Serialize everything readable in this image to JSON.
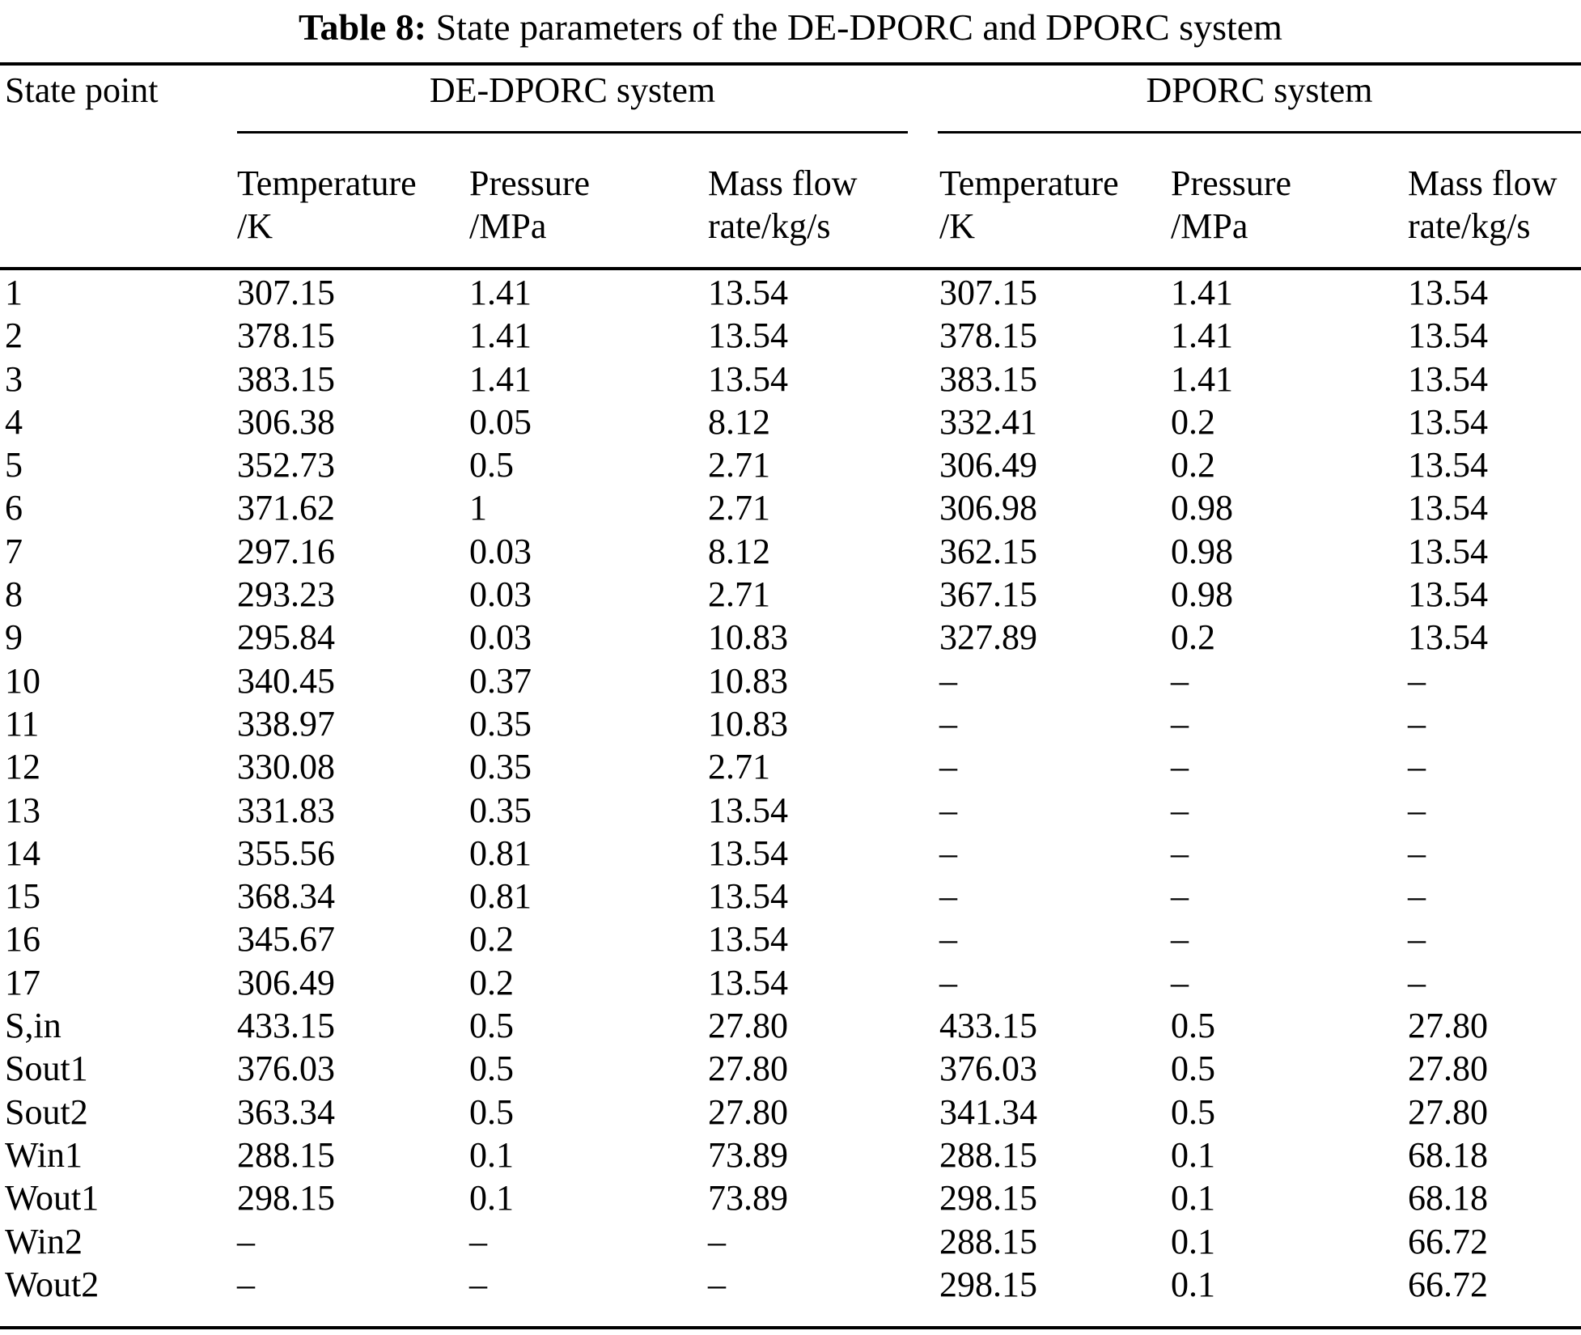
{
  "title": {
    "prefix": "Table 8:",
    "text": " State parameters of the DE-DPORC and DPORC system"
  },
  "table": {
    "corner_header": "State point",
    "groups": [
      {
        "name": "DE-DPORC system",
        "columns": [
          {
            "line1": "Temperature",
            "line2": "/K"
          },
          {
            "line1": "Pressure",
            "line2": "/MPa"
          },
          {
            "line1": "Mass flow",
            "line2": "rate/kg/s"
          }
        ]
      },
      {
        "name": "DPORC system",
        "columns": [
          {
            "line1": "Temperature",
            "line2": "/K"
          },
          {
            "line1": "Pressure",
            "line2": "/MPa"
          },
          {
            "line1": "Mass flow",
            "line2": "rate/kg/s"
          }
        ]
      }
    ],
    "rows": [
      {
        "label": "1",
        "values": [
          "307.15",
          "1.41",
          "13.54",
          "307.15",
          "1.41",
          "13.54"
        ]
      },
      {
        "label": "2",
        "values": [
          "378.15",
          "1.41",
          "13.54",
          "378.15",
          "1.41",
          "13.54"
        ]
      },
      {
        "label": "3",
        "values": [
          "383.15",
          "1.41",
          "13.54",
          "383.15",
          "1.41",
          "13.54"
        ]
      },
      {
        "label": "4",
        "values": [
          "306.38",
          "0.05",
          "8.12",
          "332.41",
          "0.2",
          "13.54"
        ]
      },
      {
        "label": "5",
        "values": [
          "352.73",
          "0.5",
          "2.71",
          "306.49",
          "0.2",
          "13.54"
        ]
      },
      {
        "label": "6",
        "values": [
          "371.62",
          "1",
          "2.71",
          "306.98",
          "0.98",
          "13.54"
        ]
      },
      {
        "label": "7",
        "values": [
          "297.16",
          "0.03",
          "8.12",
          "362.15",
          "0.98",
          "13.54"
        ]
      },
      {
        "label": "8",
        "values": [
          "293.23",
          "0.03",
          "2.71",
          "367.15",
          "0.98",
          "13.54"
        ]
      },
      {
        "label": "9",
        "values": [
          "295.84",
          "0.03",
          "10.83",
          "327.89",
          "0.2",
          "13.54"
        ]
      },
      {
        "label": "10",
        "values": [
          "340.45",
          "0.37",
          "10.83",
          "–",
          "–",
          "–"
        ]
      },
      {
        "label": "11",
        "values": [
          "338.97",
          "0.35",
          "10.83",
          "–",
          "–",
          "–"
        ]
      },
      {
        "label": "12",
        "values": [
          "330.08",
          "0.35",
          "2.71",
          "–",
          "–",
          "–"
        ]
      },
      {
        "label": "13",
        "values": [
          "331.83",
          "0.35",
          "13.54",
          "–",
          "–",
          "–"
        ]
      },
      {
        "label": "14",
        "values": [
          "355.56",
          "0.81",
          "13.54",
          "–",
          "–",
          "–"
        ]
      },
      {
        "label": "15",
        "values": [
          "368.34",
          "0.81",
          "13.54",
          "–",
          "–",
          "–"
        ]
      },
      {
        "label": "16",
        "values": [
          "345.67",
          "0.2",
          "13.54",
          "–",
          "–",
          "–"
        ]
      },
      {
        "label": "17",
        "values": [
          "306.49",
          "0.2",
          "13.54",
          "–",
          "–",
          "–"
        ]
      },
      {
        "label": "S,in",
        "values": [
          "433.15",
          "0.5",
          "27.80",
          "433.15",
          "0.5",
          "27.80"
        ]
      },
      {
        "label": "Sout1",
        "values": [
          "376.03",
          "0.5",
          "27.80",
          "376.03",
          "0.5",
          "27.80"
        ]
      },
      {
        "label": "Sout2",
        "values": [
          "363.34",
          "0.5",
          "27.80",
          "341.34",
          "0.5",
          "27.80"
        ]
      },
      {
        "label": "Win1",
        "values": [
          "288.15",
          "0.1",
          "73.89",
          "288.15",
          "0.1",
          "68.18"
        ]
      },
      {
        "label": "Wout1",
        "values": [
          "298.15",
          "0.1",
          "73.89",
          "298.15",
          "0.1",
          "68.18"
        ]
      },
      {
        "label": "Win2",
        "values": [
          "–",
          "–",
          "–",
          "288.15",
          "0.1",
          "66.72"
        ]
      },
      {
        "label": "Wout2",
        "values": [
          "–",
          "–",
          "–",
          "298.15",
          "0.1",
          "66.72"
        ]
      }
    ]
  }
}
